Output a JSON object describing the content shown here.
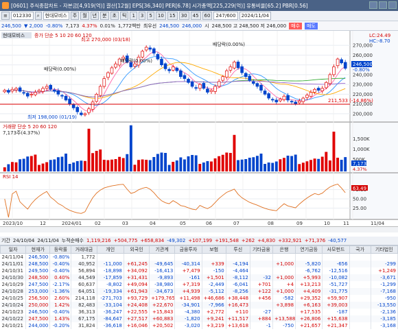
{
  "titlebar": {
    "parts": [
      "[0601] 주식종합차트",
      "- 자본금[4,919(억)]",
      "결산[12월]",
      "EPS[36,340]",
      "PER[6.78]",
      "시가총액[225,229(억)]",
      "유통비율[65.2]",
      "PBR[0.56]"
    ]
  },
  "toolbar1": {
    "code": "012330",
    "name": "현대모비스",
    "periods": [
      "주",
      "월",
      "년",
      "분",
      "초",
      "틱"
    ],
    "minutes": [
      "1",
      "3",
      "5",
      "10",
      "15",
      "30",
      "45",
      "60"
    ],
    "count": "247/600",
    "date": "2024/11/04"
  },
  "toolbar2": {
    "price": "246,500",
    "change": "▼ 2,000",
    "rate": "-0.80%",
    "volume": "7,173",
    "turnover": "4.37%",
    "pct": "0.01%",
    "amount": "1,772백만",
    "priority": "최우선",
    "ask": "246,500",
    "bid": "246,000",
    "high_label": "시",
    "high_text": "248,500 고 248,500 저 246,000",
    "buy": "매수",
    "sell": "매도"
  },
  "chart": {
    "legend_name": "현대모비스",
    "legend_ma": "증가 단순 5 10 20 60 120",
    "label_high": "최고 270,000 (03/18)",
    "label_low": "최저 198,000 (01/19)",
    "div1": "배당락(0.00%)",
    "div2": "배당락(0.00%)",
    "div3": "배당락(0.00%)",
    "hline_label": "211,533 (-14.86%)",
    "lc": "LC:24.49",
    "hc": "HC:-8.70",
    "cur_price": "246,500",
    "cur_rate": "-0.80%",
    "vol_legend": "거래량 단순 5 20 60 120",
    "vol_value": "7,173주(4.37%)",
    "vol_cur": "7,173",
    "vol_pct": "4.37%",
    "rsi_label": "RSI 14",
    "rsi_cur": "63.49",
    "xlabels": [
      "2023/10",
      "12",
      "2024/01",
      "02",
      "03",
      "04",
      "05",
      "06",
      "07",
      "08",
      "09",
      "10",
      "11",
      "11/04"
    ]
  },
  "chart_data": {
    "type": "candlestick",
    "price_axis": [
      "270,000",
      "260,000",
      "250,000",
      "240,000",
      "230,000",
      "220,000",
      "210,000",
      "200,000"
    ],
    "volume_axis": [
      "1,500K",
      "1,000K",
      "500K"
    ],
    "rsi_axis": [
      "75.00",
      "50.00",
      "25.00"
    ],
    "ylim": [
      195000,
      275000
    ],
    "closes": [
      224000,
      222000,
      225000,
      226000,
      223000,
      221000,
      218000,
      220000,
      222000,
      224000,
      226000,
      228000,
      225000,
      223000,
      220000,
      218000,
      214000,
      210000,
      206000,
      202000,
      199000,
      200000,
      205000,
      212000,
      220000,
      228000,
      236000,
      242000,
      247000,
      251000,
      256000,
      258000,
      253000,
      248000,
      251000,
      258000,
      264000,
      268000,
      266000,
      262000,
      256000,
      250000,
      246000,
      244000,
      248000,
      244000,
      238000,
      236000,
      232000,
      228000,
      226000,
      230000,
      226000,
      222000,
      224000,
      228000,
      233000,
      238000,
      244000,
      248000,
      253000,
      247000,
      242000,
      238000,
      234000,
      231000,
      228000,
      224000,
      220000,
      216000,
      214000,
      212000,
      215000,
      218000,
      214000,
      212000,
      210000,
      213000,
      216000,
      219000,
      222000,
      225000,
      224000,
      226000,
      232000,
      240000,
      248000,
      256000,
      252000,
      246500
    ]
  },
  "summary": {
    "label": "기간",
    "from": "24/10/04",
    "to": "24/11/04",
    "cum_label": "누적순매수",
    "values": [
      "1,119,216",
      "+504,775",
      "+658,834",
      "-49,302",
      "+107,199",
      "+191,548",
      "+262",
      "+4,830",
      "+332,921",
      "+71,376",
      "-40,577"
    ]
  },
  "table": {
    "headers": [
      "일자",
      "현재가",
      "등락률",
      "거래대금",
      "개인",
      "외국인",
      "기관계",
      "금융투자",
      "보험",
      "투신",
      "기타금융",
      "은행",
      "연기금등",
      "사모펀드",
      "국가",
      "기타법인"
    ],
    "rows": [
      [
        "24/11/04",
        "246,500",
        "-0.80%",
        "1,772",
        "",
        "",
        "",
        "",
        "",
        "",
        "",
        "",
        "",
        "",
        "",
        ""
      ],
      [
        "24/11/01",
        "248,500",
        "-0.40%",
        "40,952",
        "-11,000",
        "+61,245",
        "-49,645",
        "-40,314",
        "+339",
        "-4,194",
        "",
        "+1,000",
        "-5,820",
        "-656",
        "",
        "-299"
      ],
      [
        "24/10/31",
        "249,500",
        "-0.40%",
        "56,894",
        "-18,898",
        "+34,092",
        "-16,413",
        "+7,479",
        "-150",
        "-4,464",
        "",
        "",
        "-6,762",
        "-12,516",
        "",
        "+1,249"
      ],
      [
        "24/10/30",
        "248,500",
        "0.40%",
        "44,549",
        "-17,859",
        "+31,431",
        "-9,893",
        "-161",
        "+1,501",
        "-8,112",
        "-32",
        "+1,000",
        "+5,993",
        "-10,082",
        "",
        "-3,671"
      ],
      [
        "24/10/29",
        "247,500",
        "-2.17%",
        "60,637",
        "-8,802",
        "+49,094",
        "-38,980",
        "+7,319",
        "-2,449",
        "-6,041",
        "+701",
        "+4",
        "+13,213",
        "-51,727",
        "",
        "-1,299"
      ],
      [
        "24/10/28",
        "253,000",
        "-1.36%",
        "64,051",
        "-19,334",
        "+61,943",
        "-34,673",
        "+4,939",
        "-5,112",
        "-8,256",
        "+122",
        "+1,000",
        "+4,409",
        "-31,775",
        "",
        "-7,168"
      ],
      [
        "24/10/25",
        "256,500",
        "2.60%",
        "214,118",
        "-271,703",
        "+93,729",
        "+179,765",
        "+11,498",
        "+46,686",
        "+38,448",
        "+456",
        "-582",
        "+29,352",
        "+59,907",
        "",
        "-950"
      ],
      [
        "24/10/24",
        "250,000",
        "1.42%",
        "82,483",
        "-33,104",
        "+24,408",
        "+22,670",
        "-34,901",
        "-7,966",
        "+16,473",
        "",
        "+3,898",
        "+6,163",
        "+39,003",
        "",
        "-13,550"
      ],
      [
        "24/10/23",
        "246,500",
        "-0.40%",
        "36,313",
        "-36,247",
        "+22,555",
        "+15,843",
        "-4,380",
        "+2,772",
        "+110",
        "-27",
        "",
        "+17,535",
        "-187",
        "",
        "-2,136"
      ],
      [
        "24/10/22",
        "247,500",
        "1.43%",
        "67,175",
        "-84,647",
        "+27,517",
        "+60,883",
        "-1,820",
        "+9,241",
        "+11,517",
        "+884",
        "+13,588",
        "+26,806",
        "+15,638",
        "",
        "-3,185"
      ],
      [
        "24/10/21",
        "244,000",
        "-0.20%",
        "31,824",
        "-36,618",
        "+16,046",
        "+20,502",
        "-3,020",
        "+3,219",
        "+13,618",
        "-1",
        "-750",
        "+21,657",
        "+21,347",
        "",
        "-3,168"
      ]
    ]
  }
}
